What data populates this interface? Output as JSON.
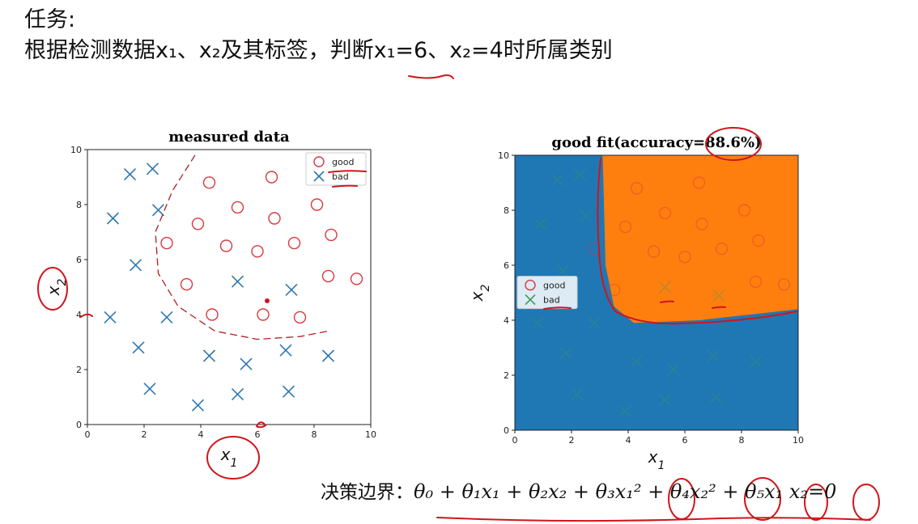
{
  "task": {
    "heading": "任务:",
    "line": "根据检测数据x₁、x₂及其标签，判断x₁=6、x₂=4时所属类别"
  },
  "formula": {
    "label": "决策边界：",
    "expression": "θ₀ + θ₁x₁ + θ₂x₂ + θ₃x₁² + θ₄x₂² + θ₅x₁ x₂=0"
  },
  "colors": {
    "good": "#d9393e",
    "bad": "#2f78b0",
    "region_bad": "#1f77b4",
    "region_good": "#ff7f0e",
    "annotation": "#d0151b"
  },
  "chart_data": [
    {
      "type": "scatter",
      "title": "measured data",
      "xlabel": "x1",
      "ylabel": "x2",
      "xlim": [
        0,
        10
      ],
      "ylim": [
        0,
        10
      ],
      "xticks": [
        0,
        2,
        4,
        6,
        8,
        10
      ],
      "yticks": [
        0,
        2,
        4,
        6,
        8,
        10
      ],
      "grid": false,
      "legend_position": "top-right",
      "series": [
        {
          "name": "good",
          "marker": "circle",
          "points": [
            [
              4.3,
              8.8
            ],
            [
              6.5,
              9.0
            ],
            [
              5.3,
              7.9
            ],
            [
              6.6,
              7.5
            ],
            [
              3.9,
              7.3
            ],
            [
              8.1,
              8.0
            ],
            [
              2.8,
              6.6
            ],
            [
              4.9,
              6.5
            ],
            [
              6.0,
              6.3
            ],
            [
              7.3,
              6.6
            ],
            [
              8.6,
              6.9
            ],
            [
              3.5,
              5.1
            ],
            [
              8.5,
              5.4
            ],
            [
              9.5,
              5.3
            ],
            [
              4.4,
              4.0
            ],
            [
              6.2,
              4.0
            ],
            [
              7.5,
              3.9
            ]
          ]
        },
        {
          "name": "bad",
          "marker": "x",
          "points": [
            [
              1.5,
              9.1
            ],
            [
              2.3,
              9.3
            ],
            [
              0.9,
              7.5
            ],
            [
              2.5,
              7.8
            ],
            [
              1.7,
              5.8
            ],
            [
              0.8,
              3.9
            ],
            [
              2.8,
              3.9
            ],
            [
              5.3,
              5.2
            ],
            [
              7.2,
              4.9
            ],
            [
              1.8,
              2.8
            ],
            [
              4.3,
              2.5
            ],
            [
              5.6,
              2.2
            ],
            [
              7.0,
              2.7
            ],
            [
              8.5,
              2.5
            ],
            [
              2.2,
              1.3
            ],
            [
              3.9,
              0.7
            ],
            [
              5.3,
              1.1
            ],
            [
              7.1,
              1.2
            ]
          ]
        }
      ]
    },
    {
      "type": "scatter",
      "title": "good fit(accuracy=88.6%)",
      "xlabel": "x1",
      "ylabel": "x2",
      "xlim": [
        0,
        10
      ],
      "ylim": [
        0,
        10
      ],
      "xticks": [
        0,
        2,
        4,
        6,
        8,
        10
      ],
      "yticks": [
        0,
        2,
        4,
        6,
        8,
        10
      ],
      "grid": false,
      "legend_position": "center-left",
      "series": [
        {
          "name": "good",
          "marker": "circle",
          "points": [
            [
              4.3,
              8.8
            ],
            [
              6.5,
              9.0
            ],
            [
              5.3,
              7.9
            ],
            [
              6.6,
              7.5
            ],
            [
              3.9,
              7.4
            ],
            [
              8.1,
              8.0
            ],
            [
              2.8,
              6.6
            ],
            [
              4.9,
              6.5
            ],
            [
              6.0,
              6.3
            ],
            [
              7.3,
              6.6
            ],
            [
              8.6,
              6.9
            ],
            [
              3.5,
              5.1
            ],
            [
              8.5,
              5.4
            ],
            [
              9.5,
              5.3
            ]
          ]
        },
        {
          "name": "bad",
          "marker": "x",
          "points": [
            [
              1.5,
              9.1
            ],
            [
              2.3,
              9.3
            ],
            [
              0.9,
              7.5
            ],
            [
              2.5,
              7.8
            ],
            [
              1.7,
              5.8
            ],
            [
              0.8,
              3.9
            ],
            [
              2.8,
              3.9
            ],
            [
              5.3,
              5.2
            ],
            [
              7.2,
              4.9
            ],
            [
              1.8,
              2.8
            ],
            [
              4.3,
              2.5
            ],
            [
              5.6,
              2.2
            ],
            [
              7.0,
              2.7
            ],
            [
              8.5,
              2.5
            ],
            [
              2.2,
              1.3
            ],
            [
              3.9,
              0.7
            ],
            [
              5.3,
              1.1
            ],
            [
              7.1,
              1.2
            ]
          ]
        }
      ],
      "regions": [
        {
          "name": "bad",
          "color": "#1f77b4"
        },
        {
          "name": "good",
          "color": "#ff7f0e",
          "boundary": [
            [
              3.1,
              10.0
            ],
            [
              3.2,
              6.0
            ],
            [
              3.5,
              4.5
            ],
            [
              4.2,
              3.9
            ],
            [
              6.5,
              4.0
            ],
            [
              10.0,
              4.4
            ],
            [
              10.0,
              10.0
            ]
          ]
        }
      ]
    }
  ]
}
